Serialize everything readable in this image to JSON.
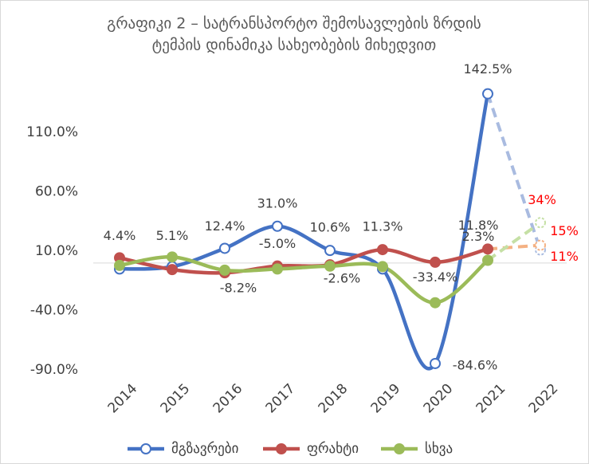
{
  "chart_data": {
    "type": "line",
    "title": [
      "გრაფიკი 2 – სატრანსპორტო შემოსავლების ზრდის",
      "ტემპის დინამიკა სახეობების მიხედვით"
    ],
    "categories": [
      "2014",
      "2015",
      "2016",
      "2017",
      "2018",
      "2019",
      "2020",
      "2021",
      "2022"
    ],
    "dashed_from": "2021",
    "forecast_label_color": "#ff0000",
    "series": [
      {
        "name": "მგზავრები",
        "color": "#4472c4",
        "forecast_color": "#a9bbe0",
        "marker_fill": "#ffffff",
        "values": [
          -5,
          -3,
          12.4,
          31.0,
          10.6,
          -5,
          -84.6,
          142.5,
          11
        ],
        "value_labels": [
          null,
          null,
          "12.4%",
          "31.0%",
          "10.6%",
          null,
          "-84.6%",
          "142.5%",
          "11%"
        ]
      },
      {
        "name": "ფრახტი",
        "color": "#c0504d",
        "forecast_color": "#f4b183",
        "marker_fill": "#c0504d",
        "values": [
          4.4,
          -5.5,
          -8.2,
          -2.5,
          -1.5,
          11.3,
          0.7,
          11.8,
          15
        ],
        "value_labels": [
          "4.4%",
          null,
          "-8.2%",
          null,
          null,
          "11.3%",
          null,
          "11.8%",
          "15%"
        ]
      },
      {
        "name": "სხვა",
        "color": "#9bbb59",
        "forecast_color": "#c5e0a5",
        "marker_fill": "#9bbb59",
        "values": [
          -2,
          5.1,
          -6,
          -5.0,
          -2.6,
          -3,
          -33.4,
          2.3,
          34
        ],
        "value_labels": [
          null,
          "5.1%",
          null,
          "-5.0%",
          "-2.6%",
          null,
          "-33.4%",
          "2.3%",
          "34%"
        ]
      }
    ],
    "ylim": [
      -90,
      160
    ],
    "yticks": [
      {
        "value": -90,
        "label": "-90.0%"
      },
      {
        "value": -40,
        "label": "-40.0%"
      },
      {
        "value": 10,
        "label": "10.0%"
      },
      {
        "value": 60,
        "label": "60.0%"
      },
      {
        "value": 110,
        "label": "110.0%"
      }
    ],
    "legend": "bottom"
  }
}
